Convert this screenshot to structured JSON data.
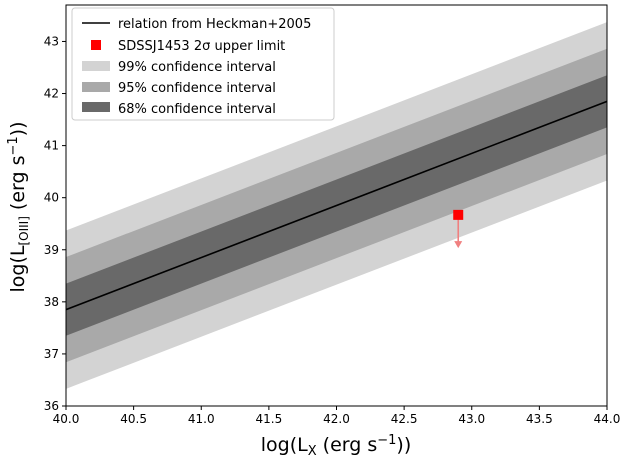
{
  "chart_data": {
    "type": "line",
    "xlabel": {
      "main": "log(L",
      "sub": "X",
      "mid": " (erg s",
      "sup": "−1",
      "end": "))"
    },
    "ylabel": {
      "main": "log(L",
      "sub": "[OIII]",
      "mid": " (erg s",
      "sup": "−1",
      "end": "))"
    },
    "xlim": [
      40.0,
      44.0
    ],
    "ylim": [
      36.0,
      43.7
    ],
    "xticks": [
      40.0,
      40.5,
      41.0,
      41.5,
      42.0,
      42.5,
      43.0,
      43.5,
      44.0
    ],
    "xtick_labels": [
      "40.0",
      "40.5",
      "41.0",
      "41.5",
      "42.0",
      "42.5",
      "43.0",
      "43.5",
      "44.0"
    ],
    "yticks": [
      36,
      37,
      38,
      39,
      40,
      41,
      42,
      43
    ],
    "ytick_labels": [
      "36",
      "37",
      "38",
      "39",
      "40",
      "41",
      "42",
      "43"
    ],
    "relation": {
      "name": "relation from Heckman+2005",
      "x": [
        40.0,
        44.0
      ],
      "y": [
        37.85,
        41.85
      ],
      "color": "#000000"
    },
    "bands": [
      {
        "name": "99% confidence interval",
        "lower": [
          36.33,
          40.33
        ],
        "upper": [
          39.37,
          43.37
        ],
        "color": "#d3d3d3"
      },
      {
        "name": "95% confidence interval",
        "lower": [
          36.84,
          40.84
        ],
        "upper": [
          38.86,
          42.86
        ],
        "color": "#a9a9a9"
      },
      {
        "name": "68% confidence interval",
        "lower": [
          37.35,
          41.35
        ],
        "upper": [
          38.35,
          42.35
        ],
        "color": "#696969"
      }
    ],
    "upper_limit": {
      "name": "SDSSJ1453 2σ upper limit",
      "x": 42.9,
      "y": 39.67,
      "arrow_to": 39.05,
      "color": "#ff0000",
      "arrow_color": "#f08080"
    },
    "legend_position": "upper-left",
    "grid": false
  }
}
